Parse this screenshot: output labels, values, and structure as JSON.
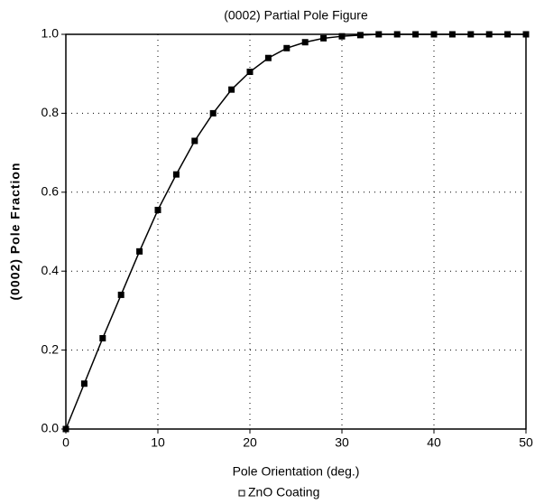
{
  "chart_data": {
    "type": "line",
    "title": "(0002) Partial Pole Figure",
    "x_label": "Pole Orientation (deg.)",
    "y_label": "(0002) Pole Fraction",
    "x": [
      0,
      2,
      4,
      6,
      8,
      10,
      12,
      14,
      16,
      18,
      20,
      22,
      24,
      26,
      28,
      30,
      32,
      34,
      36,
      38,
      40,
      42,
      44,
      46,
      48,
      50
    ],
    "series": [
      {
        "name": "ZnO Coating",
        "color": "#000000",
        "values": [
          0,
          0.115,
          0.23,
          0.34,
          0.45,
          0.555,
          0.645,
          0.73,
          0.8,
          0.86,
          0.905,
          0.94,
          0.965,
          0.98,
          0.99,
          0.995,
          0.998,
          1.0,
          1.0,
          1.0,
          1.0,
          1.0,
          1.0,
          1.0,
          1.0,
          1.0
        ]
      }
    ],
    "xlim": [
      0,
      50
    ],
    "xticks": [
      0,
      10,
      20,
      30,
      40,
      50
    ],
    "ylim": [
      0,
      1
    ],
    "yticks": [
      {
        "value": 0,
        "label": "0.0"
      },
      0.2,
      0.4,
      0.6,
      0.8,
      {
        "value": 1,
        "label": "1.0"
      }
    ],
    "grid": true,
    "legend": "bottom"
  }
}
